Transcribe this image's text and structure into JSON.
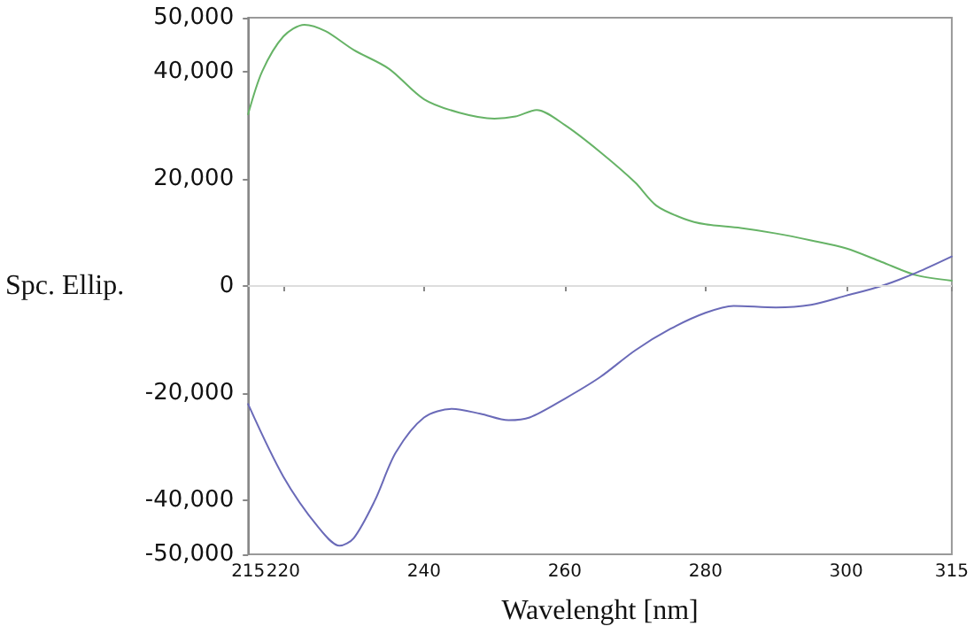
{
  "chart_data": {
    "type": "line",
    "xlabel": "Wavelenght [nm]",
    "ylabel": "Spc. Ellip.",
    "xlim": [
      215,
      315
    ],
    "xticks": [
      215,
      220,
      240,
      260,
      280,
      300,
      315
    ],
    "ylim": [
      -50000,
      50000
    ],
    "yticks": [
      {
        "value": -50000,
        "label": "-50,000"
      },
      {
        "value": -40000,
        "label": "-40,000"
      },
      {
        "value": -20000,
        "label": "-20,000"
      },
      0,
      {
        "value": 20000,
        "label": "20,000"
      },
      {
        "value": 40000,
        "label": "40,000"
      },
      {
        "value": 50000,
        "label": "50,000"
      }
    ],
    "grid": false,
    "marker": "none",
    "line_style": "solid",
    "ref_lines": [
      {
        "axis": "y",
        "value": 0,
        "label": null,
        "color": "#dddddd"
      }
    ],
    "series": [
      {
        "color": "#66b366",
        "x": [
          215,
          217,
          220,
          223,
          226,
          230,
          235,
          240,
          245,
          250,
          253,
          256,
          260,
          265,
          270,
          273,
          277,
          280,
          285,
          290,
          295,
          300,
          305,
          310,
          315
        ],
        "values": [
          32000,
          40000,
          46500,
          48700,
          47500,
          44000,
          40500,
          34800,
          32300,
          31200,
          31600,
          32800,
          30000,
          25000,
          19300,
          15000,
          12500,
          11500,
          10800,
          9800,
          8500,
          7000,
          4500,
          2000,
          1000
        ]
      },
      {
        "color": "#6a6ab8",
        "x": [
          215,
          220,
          225,
          228,
          230,
          233,
          236,
          240,
          244,
          248,
          252,
          255,
          260,
          265,
          270,
          275,
          280,
          284,
          290,
          295,
          300,
          305,
          310,
          315
        ],
        "values": [
          -22000,
          -35500,
          -45000,
          -48400,
          -47000,
          -40000,
          -31000,
          -24500,
          -22900,
          -23800,
          -25000,
          -24500,
          -21000,
          -17000,
          -12000,
          -8000,
          -5000,
          -3700,
          -4000,
          -3500,
          -1800,
          0,
          2500,
          5500
        ]
      }
    ]
  }
}
